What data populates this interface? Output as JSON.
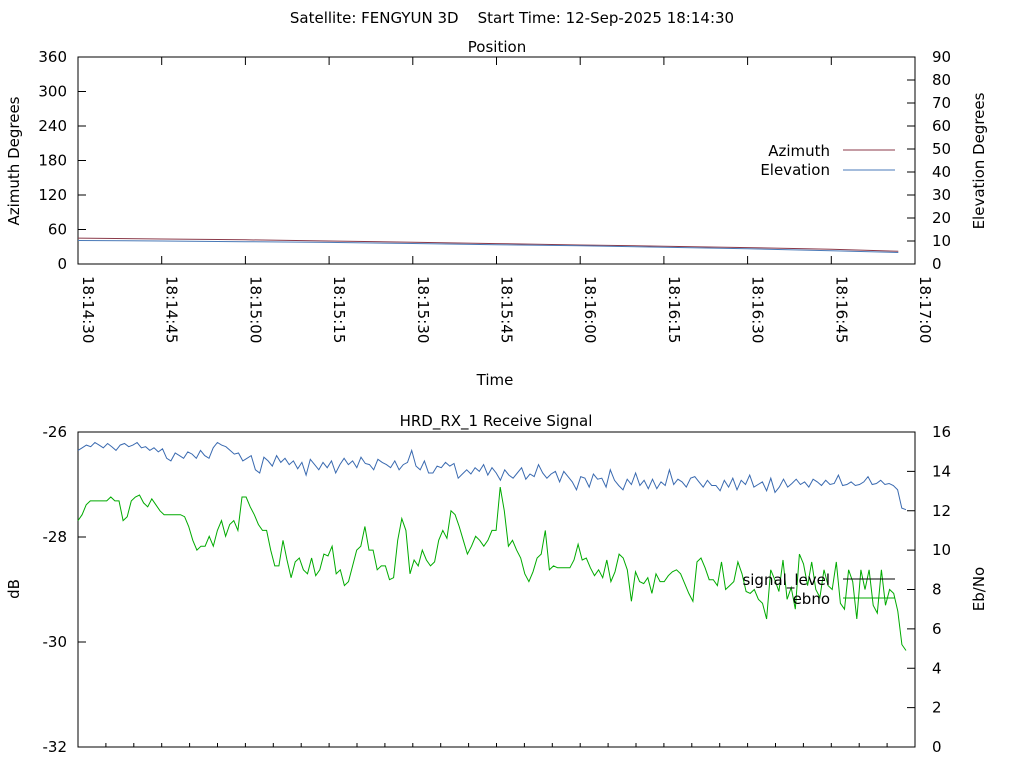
{
  "header": {
    "title": "Satellite: FENGYUN 3D    Start Time: 12-Sep-2025 18:14:30"
  },
  "chart_data": [
    {
      "type": "line",
      "title": "Position",
      "xlabel": "Time",
      "ylabel": "Azimuth Degrees",
      "y2label": "Elevation Degrees",
      "x_ticks": [
        "18:14:30",
        "18:14:45",
        "18:15:00",
        "18:15:15",
        "18:15:30",
        "18:15:45",
        "18:16:00",
        "18:16:15",
        "18:16:30",
        "18:16:45",
        "18:17:00"
      ],
      "y_ticks": [
        "0",
        "60",
        "120",
        "180",
        "240",
        "300",
        "360"
      ],
      "y2_ticks": [
        "0",
        "10",
        "20",
        "30",
        "40",
        "50",
        "60",
        "70",
        "80",
        "90"
      ],
      "ylim": [
        0,
        360
      ],
      "y2lim": [
        0,
        90
      ],
      "xlim_seconds": [
        0,
        150
      ],
      "legend_position": "right",
      "grid": false,
      "series": [
        {
          "name": "Azimuth",
          "axis": "left",
          "color": "#8b3a4a",
          "x": [
            0,
            15,
            30,
            45,
            60,
            75,
            90,
            105,
            120,
            135,
            147
          ],
          "y": [
            45,
            43.5,
            42,
            40,
            38,
            35.5,
            33,
            31,
            28.5,
            25.5,
            22
          ]
        },
        {
          "name": "Elevation",
          "axis": "right",
          "color": "#4a7ab8",
          "x": [
            0,
            15,
            30,
            45,
            60,
            75,
            90,
            105,
            120,
            135,
            147
          ],
          "y": [
            10.2,
            10.0,
            9.7,
            9.4,
            8.9,
            8.4,
            7.9,
            7.3,
            6.6,
            5.8,
            5.0
          ]
        }
      ]
    },
    {
      "type": "line",
      "title": "HRD_RX_1 Receive Signal",
      "ylabel": "dB",
      "y2label": "Eb/No",
      "y_ticks": [
        "-26",
        "-28",
        "-30",
        "-32"
      ],
      "y2_ticks": [
        "0",
        "2",
        "4",
        "6",
        "8",
        "10",
        "12",
        "14",
        "16"
      ],
      "ylim": [
        -32,
        -26
      ],
      "y2lim": [
        0,
        16
      ],
      "x_minor_ticks": 30,
      "legend_position": "right",
      "grid": false,
      "series": [
        {
          "name": "signal_level",
          "axis": "left",
          "color": "#3a6ab0",
          "y": [
            -26.35,
            -26.3,
            -26.25,
            -26.28,
            -26.2,
            -26.25,
            -26.3,
            -26.22,
            -26.28,
            -26.35,
            -26.25,
            -26.22,
            -26.28,
            -26.25,
            -26.2,
            -26.3,
            -26.28,
            -26.35,
            -26.3,
            -26.38,
            -26.32,
            -26.5,
            -26.55,
            -26.4,
            -26.45,
            -26.5,
            -26.38,
            -26.42,
            -26.5,
            -26.35,
            -26.45,
            -26.5,
            -26.3,
            -26.2,
            -26.25,
            -26.28,
            -26.35,
            -26.42,
            -26.4,
            -26.55,
            -26.5,
            -26.45,
            -26.72,
            -26.78,
            -26.48,
            -26.55,
            -26.65,
            -26.45,
            -26.58,
            -26.5,
            -26.62,
            -26.55,
            -26.7,
            -26.58,
            -26.82,
            -26.52,
            -26.62,
            -26.72,
            -26.58,
            -26.68,
            -26.55,
            -26.78,
            -26.62,
            -26.5,
            -26.62,
            -26.55,
            -26.68,
            -26.48,
            -26.6,
            -26.62,
            -26.72,
            -26.52,
            -26.58,
            -26.62,
            -26.68,
            -26.55,
            -26.72,
            -26.62,
            -26.58,
            -26.35,
            -26.65,
            -26.72,
            -26.55,
            -26.78,
            -26.78,
            -26.65,
            -26.68,
            -26.58,
            -26.65,
            -26.6,
            -26.88,
            -26.8,
            -26.72,
            -26.8,
            -26.68,
            -26.75,
            -26.62,
            -26.82,
            -26.68,
            -26.78,
            -26.92,
            -26.72,
            -26.82,
            -26.88,
            -26.78,
            -26.68,
            -26.9,
            -26.8,
            -26.85,
            -26.62,
            -26.78,
            -26.88,
            -26.8,
            -26.75,
            -26.95,
            -26.75,
            -26.85,
            -26.95,
            -27.1,
            -26.85,
            -26.88,
            -27.05,
            -26.8,
            -26.9,
            -26.88,
            -27.05,
            -26.72,
            -26.92,
            -27.02,
            -27.1,
            -26.9,
            -27.0,
            -26.78,
            -27.02,
            -26.92,
            -27.08,
            -26.9,
            -27.08,
            -26.95,
            -27.02,
            -26.72,
            -27.0,
            -26.9,
            -26.95,
            -27.05,
            -26.88,
            -26.85,
            -26.95,
            -27.05,
            -26.92,
            -27.02,
            -27.02,
            -27.12,
            -26.92,
            -27.05,
            -26.88,
            -27.1,
            -26.92,
            -27.0,
            -26.82,
            -27.05,
            -27.0,
            -26.95,
            -27.12,
            -26.88,
            -27.15,
            -27.05,
            -26.9,
            -27.05,
            -26.98,
            -26.9,
            -27.0,
            -26.95,
            -27.05,
            -26.9,
            -26.95,
            -27.02,
            -26.92,
            -27.0,
            -26.98,
            -26.82,
            -27.02,
            -27.0,
            -26.95,
            -27.02,
            -27.0,
            -26.95,
            -26.85,
            -27.0,
            -26.98,
            -26.92,
            -27.0,
            -26.98,
            -27.02,
            -27.1,
            -27.45,
            -27.48
          ]
        },
        {
          "name": "ebno",
          "axis": "right",
          "color": "#00aa00",
          "y": [
            11.5,
            11.8,
            12.3,
            12.5,
            12.5,
            12.5,
            12.5,
            12.5,
            12.7,
            12.5,
            12.5,
            11.5,
            11.7,
            12.5,
            12.7,
            12.8,
            12.4,
            12.2,
            12.6,
            12.3,
            12.0,
            11.8,
            11.8,
            11.8,
            11.8,
            11.8,
            11.7,
            11.2,
            10.5,
            10.0,
            10.2,
            10.2,
            10.7,
            10.2,
            11.0,
            11.5,
            10.7,
            11.3,
            11.5,
            11.0,
            12.7,
            12.7,
            12.2,
            11.8,
            11.3,
            11.0,
            11.0,
            10.0,
            9.2,
            9.2,
            10.5,
            9.5,
            8.6,
            9.4,
            9.6,
            9.0,
            8.8,
            9.6,
            8.7,
            9.0,
            9.8,
            9.7,
            10.2,
            8.8,
            9.0,
            8.2,
            8.4,
            9.2,
            10.0,
            10.2,
            11.2,
            10.0,
            10.0,
            9.0,
            9.2,
            9.2,
            8.5,
            8.6,
            10.5,
            11.6,
            11.0,
            8.8,
            9.5,
            9.2,
            10.0,
            9.5,
            9.2,
            9.4,
            10.5,
            11.0,
            10.6,
            12.0,
            11.8,
            11.2,
            10.5,
            9.8,
            10.2,
            10.7,
            10.5,
            10.2,
            10.5,
            11.0,
            11.0,
            13.2,
            12.0,
            10.2,
            10.5,
            10.0,
            9.6,
            8.8,
            8.4,
            8.9,
            9.6,
            9.8,
            11.0,
            9.0,
            9.2,
            9.1,
            9.1,
            9.1,
            9.1,
            9.5,
            10.3,
            9.5,
            9.6,
            9.1,
            8.7,
            9.0,
            8.6,
            9.5,
            8.4,
            8.9,
            9.8,
            9.6,
            9.0,
            7.4,
            8.9,
            8.4,
            8.3,
            8.6,
            7.8,
            8.8,
            8.4,
            8.4,
            8.7,
            8.9,
            9.0,
            8.8,
            8.3,
            7.8,
            7.4,
            9.4,
            9.6,
            9.1,
            8.5,
            8.5,
            8.2,
            9.4,
            8.0,
            8.2,
            8.4,
            9.4,
            8.8,
            7.9,
            7.8,
            8.0,
            7.5,
            7.3,
            6.5,
            9.0,
            8.5,
            7.9,
            9.5,
            7.5,
            8.1,
            7.0,
            9.8,
            9.3,
            8.2,
            9.4,
            8.0,
            7.6,
            9.0,
            8.2,
            8.0,
            9.4,
            7.3,
            7.0,
            9.0,
            8.4,
            6.5,
            9.0,
            8.0,
            9.0,
            7.2,
            6.8,
            9.0,
            7.2,
            8.0,
            7.8,
            6.9,
            5.2,
            4.9
          ]
        }
      ]
    }
  ]
}
